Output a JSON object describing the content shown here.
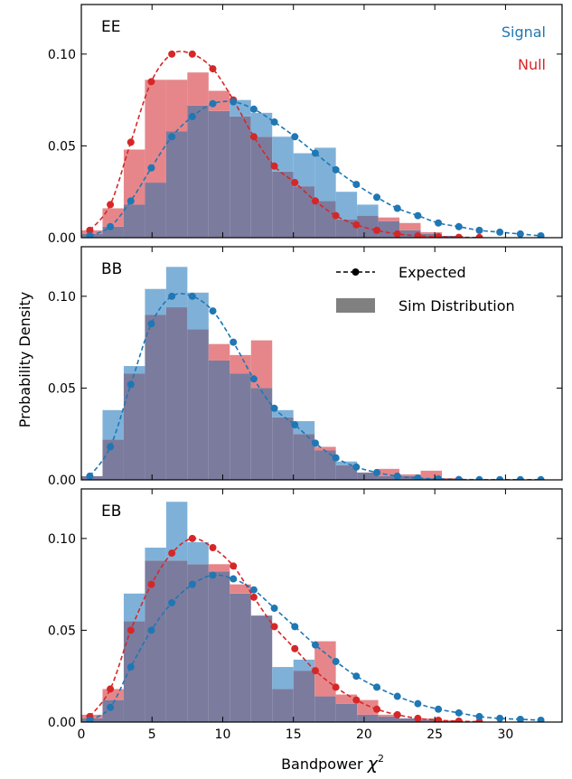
{
  "figure": {
    "ylabel": "Probability Density",
    "xlabel_main": "Bandpower ",
    "xlabel_symbol": "χ",
    "xlabel_sup": "2",
    "x_ticks": [
      0,
      5,
      10,
      15,
      20,
      25,
      30
    ],
    "x_tick_labels": [
      "0",
      "5",
      "10",
      "15",
      "20",
      "25",
      "30"
    ],
    "xlim": [
      0,
      34
    ],
    "y_ticks": [
      0.0,
      0.05,
      0.1
    ],
    "y_tick_labels": [
      "0.00",
      "0.05",
      "0.10"
    ],
    "ylim": [
      0,
      0.127
    ],
    "signal_label": "Signal",
    "null_label": "Null",
    "legend_expected": "Expected",
    "legend_sim": "Sim Distribution",
    "colors": {
      "signal": "#1f77b4",
      "null": "#d62728",
      "signal_fill": "#7fb1d8",
      "null_fill": "#e6868a",
      "overlap_fill": "#7b7b9e",
      "legend_fill": "#808080"
    }
  },
  "chart_data": [
    {
      "type": "histogram",
      "title": "EE",
      "bin_edges": [
        0,
        1.5,
        3,
        4.5,
        6,
        7.5,
        9,
        10.5,
        12,
        13.5,
        15,
        16.5,
        18,
        19.5,
        21,
        22.5,
        24,
        25.5,
        27
      ],
      "histograms": [
        {
          "name": "Signal",
          "values": [
            0.002,
            0.006,
            0.018,
            0.03,
            0.058,
            0.072,
            0.069,
            0.075,
            0.068,
            0.055,
            0.046,
            0.049,
            0.025,
            0.018,
            0.009,
            0.004,
            0.002,
            0.001
          ]
        },
        {
          "name": "Null",
          "values": [
            0.004,
            0.016,
            0.048,
            0.086,
            0.086,
            0.09,
            0.08,
            0.066,
            0.055,
            0.036,
            0.028,
            0.02,
            0.01,
            0.012,
            0.011,
            0.008,
            0.003,
            0.001
          ]
        }
      ],
      "expected": [
        {
          "name": "Signal",
          "x": [
            0.6,
            2.05,
            3.5,
            4.95,
            6.4,
            7.85,
            9.3,
            10.75,
            12.2,
            13.65,
            15.1,
            16.55,
            18.0,
            19.45,
            20.9,
            22.35,
            23.8,
            25.25,
            26.7,
            28.15,
            29.6,
            31.05,
            32.5
          ],
          "y": [
            0.001,
            0.006,
            0.02,
            0.038,
            0.055,
            0.066,
            0.073,
            0.074,
            0.07,
            0.063,
            0.055,
            0.046,
            0.037,
            0.029,
            0.022,
            0.016,
            0.012,
            0.008,
            0.006,
            0.004,
            0.003,
            0.002,
            0.001
          ]
        },
        {
          "name": "Null",
          "x": [
            0.6,
            2.05,
            3.5,
            4.95,
            6.4,
            7.85,
            9.3,
            10.75,
            12.2,
            13.65,
            15.1,
            16.55,
            18.0,
            19.45,
            20.9,
            22.35,
            23.8,
            25.25,
            26.7,
            28.15
          ],
          "y": [
            0.004,
            0.018,
            0.052,
            0.085,
            0.1,
            0.1,
            0.092,
            0.075,
            0.055,
            0.039,
            0.03,
            0.02,
            0.012,
            0.007,
            0.004,
            0.002,
            0.001,
            0.0005,
            0.0002,
            0.0001
          ]
        }
      ]
    },
    {
      "type": "histogram",
      "title": "BB",
      "bin_edges": [
        0,
        1.5,
        3,
        4.5,
        6,
        7.5,
        9,
        10.5,
        12,
        13.5,
        15,
        16.5,
        18,
        19.5,
        21,
        22.5,
        24,
        25.5,
        27
      ],
      "histograms": [
        {
          "name": "Signal",
          "values": [
            0.002,
            0.038,
            0.062,
            0.104,
            0.116,
            0.102,
            0.065,
            0.058,
            0.05,
            0.038,
            0.032,
            0.016,
            0.01,
            0.004,
            0.002,
            0.002,
            0.001,
            0.0005
          ]
        },
        {
          "name": "Null",
          "values": [
            0.002,
            0.022,
            0.058,
            0.09,
            0.094,
            0.082,
            0.074,
            0.068,
            0.076,
            0.034,
            0.025,
            0.018,
            0.008,
            0.004,
            0.006,
            0.003,
            0.005,
            0.001
          ]
        }
      ],
      "expected": [
        {
          "name": "Signal",
          "x": [
            0.6,
            2.05,
            3.5,
            4.95,
            6.4,
            7.85,
            9.3,
            10.75,
            12.2,
            13.65,
            15.1,
            16.55,
            18.0,
            19.45,
            20.9,
            22.35,
            23.8,
            25.25,
            26.7,
            28.15,
            29.6,
            31.05,
            32.5
          ],
          "y": [
            0.002,
            0.018,
            0.052,
            0.085,
            0.1,
            0.1,
            0.092,
            0.075,
            0.055,
            0.039,
            0.03,
            0.02,
            0.012,
            0.007,
            0.004,
            0.002,
            0.001,
            0.0005,
            0.0002,
            0.0001,
            0.0001,
            0.0001,
            0.0001
          ]
        }
      ]
    },
    {
      "type": "histogram",
      "title": "EB",
      "bin_edges": [
        0,
        1.5,
        3,
        4.5,
        6,
        7.5,
        9,
        10.5,
        12,
        13.5,
        15,
        16.5,
        18,
        19.5,
        21,
        22.5,
        24,
        25.5,
        27
      ],
      "histograms": [
        {
          "name": "Signal",
          "values": [
            0.002,
            0.012,
            0.07,
            0.095,
            0.12,
            0.098,
            0.082,
            0.07,
            0.058,
            0.03,
            0.034,
            0.014,
            0.01,
            0.004,
            0.003,
            0.002,
            0.001,
            0.0005
          ]
        },
        {
          "name": "Null",
          "values": [
            0.004,
            0.018,
            0.055,
            0.088,
            0.088,
            0.086,
            0.086,
            0.075,
            0.058,
            0.018,
            0.028,
            0.044,
            0.015,
            0.012,
            0.004,
            0.002,
            0.002,
            0.001
          ]
        }
      ],
      "expected": [
        {
          "name": "Signal",
          "x": [
            0.6,
            2.05,
            3.5,
            4.95,
            6.4,
            7.85,
            9.3,
            10.75,
            12.2,
            13.65,
            15.1,
            16.55,
            18.0,
            19.45,
            20.9,
            22.35,
            23.8,
            25.25,
            26.7,
            28.15,
            29.6,
            31.05,
            32.5
          ],
          "y": [
            0.001,
            0.008,
            0.03,
            0.05,
            0.065,
            0.075,
            0.08,
            0.078,
            0.072,
            0.062,
            0.052,
            0.042,
            0.033,
            0.025,
            0.019,
            0.014,
            0.01,
            0.007,
            0.005,
            0.003,
            0.002,
            0.0015,
            0.001
          ]
        },
        {
          "name": "Null",
          "x": [
            0.6,
            2.05,
            3.5,
            4.95,
            6.4,
            7.85,
            9.3,
            10.75,
            12.2,
            13.65,
            15.1,
            16.55,
            18.0,
            19.45,
            20.9,
            22.35,
            23.8,
            25.25,
            26.7,
            28.15
          ],
          "y": [
            0.003,
            0.018,
            0.05,
            0.075,
            0.092,
            0.1,
            0.095,
            0.085,
            0.068,
            0.052,
            0.04,
            0.028,
            0.019,
            0.012,
            0.007,
            0.004,
            0.002,
            0.001,
            0.0005,
            0.0002
          ]
        }
      ]
    }
  ]
}
